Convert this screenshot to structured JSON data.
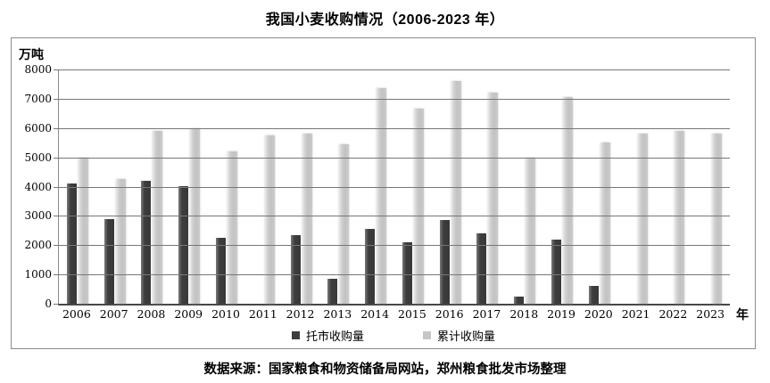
{
  "title": "我国小麦收购情况（2006-2023 年）",
  "source": "数据来源：国家粮食和物资储备局网站，郑州粮食批发市场整理",
  "colors": {
    "dark_bar": "#3d3d3d",
    "light_bar": "#c6c6c6",
    "gridline": "#777777",
    "frame_border": "#8c8c8c"
  },
  "chart_data": {
    "type": "bar",
    "title": "我国小麦收购情况（2006-2023 年）",
    "xlabel": "年",
    "ylabel": "万吨",
    "ylim": [
      0,
      8000
    ],
    "y_tick_step": 1000,
    "grid": true,
    "legend_position": "bottom",
    "categories": [
      "2006",
      "2007",
      "2008",
      "2009",
      "2010",
      "2011",
      "2012",
      "2013",
      "2014",
      "2015",
      "2016",
      "2017",
      "2018",
      "2019",
      "2020",
      "2021",
      "2022",
      "2023"
    ],
    "series": [
      {
        "name": "托市收购量",
        "color": "#3d3d3d",
        "values": [
          4100,
          2900,
          4200,
          4000,
          2250,
          null,
          2350,
          850,
          2550,
          2100,
          2850,
          2400,
          230,
          2200,
          600,
          null,
          null,
          null
        ]
      },
      {
        "name": "累计收购量",
        "color": "#c6c6c6",
        "values": [
          5000,
          4250,
          5900,
          6000,
          5200,
          5750,
          5800,
          5450,
          7350,
          6650,
          7600,
          7200,
          5000,
          7050,
          5500,
          5800,
          5900,
          5800
        ]
      }
    ]
  }
}
